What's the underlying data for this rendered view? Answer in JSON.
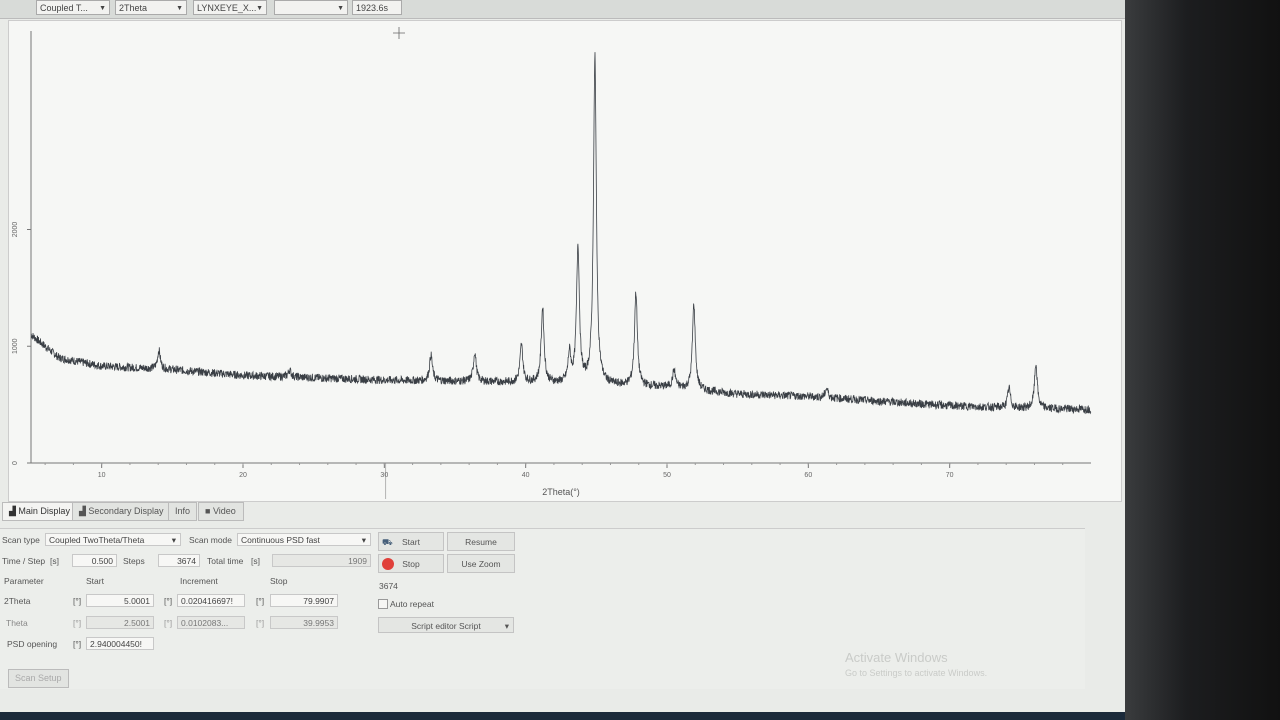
{
  "toolbar": {
    "scan_type_short": "Coupled T...",
    "axis": "2Theta",
    "detector": "LYNXEYE_X...",
    "blank": "",
    "time": "1923.6s"
  },
  "tabs": [
    {
      "label": "Main Display",
      "active": true
    },
    {
      "label": "Secondary Display"
    },
    {
      "label": "Info"
    },
    {
      "label": "Video"
    }
  ],
  "scan": {
    "scan_type_label": "Scan type",
    "scan_type": "Coupled TwoTheta/Theta",
    "scan_mode_label": "Scan mode",
    "scan_mode": "Continuous PSD fast",
    "time_step_label": "Time / Step",
    "time_step_unit": "[s]",
    "time_step": "0.500",
    "steps_label": "Steps",
    "steps": "3674",
    "total_time_label": "Total time",
    "total_time_unit": "[s]",
    "total_time": "1909",
    "headers": {
      "parameter": "Parameter",
      "start": "Start",
      "increment": "Increment",
      "stop": "Stop"
    },
    "unit": "[°]",
    "rows": [
      {
        "name": "2Theta",
        "start": "5.0001",
        "increment": "0.020416697!",
        "stop": "79.9907"
      },
      {
        "name": "Theta",
        "start": "2.5001",
        "increment": "0.0102083...",
        "stop": "39.9953"
      }
    ],
    "psd_label": "PSD opening",
    "psd": "2.940004450!",
    "counter": "3674",
    "auto_repeat": "Auto repeat",
    "script": "Script editor Script",
    "setup_tab": "Scan Setup"
  },
  "buttons": {
    "start": "Start",
    "resume": "Resume",
    "stop": "Stop",
    "use_zoom": "Use Zoom"
  },
  "watermark": {
    "title": "Activate Windows",
    "sub": "Go to Settings to activate Windows."
  },
  "chart_data": {
    "type": "line",
    "xlabel": "2Theta(°)",
    "ylabel": "",
    "xlim": [
      5,
      80
    ],
    "ylim": [
      0,
      3700
    ],
    "x_ticks": [
      10,
      20,
      30,
      40,
      50,
      60,
      70
    ],
    "y_ticks": [
      0,
      1000,
      2000
    ],
    "baseline": [
      [
        5,
        1100
      ],
      [
        7,
        900
      ],
      [
        10,
        830
      ],
      [
        15,
        800
      ],
      [
        20,
        750
      ],
      [
        30,
        710
      ],
      [
        40,
        690
      ],
      [
        50,
        650
      ],
      [
        55,
        590
      ],
      [
        60,
        570
      ],
      [
        70,
        490
      ],
      [
        75,
        470
      ],
      [
        80,
        460
      ]
    ],
    "peaks": [
      [
        14.05,
        160
      ],
      [
        23.3,
        60
      ],
      [
        33.3,
        220
      ],
      [
        36.4,
        250
      ],
      [
        39.7,
        320
      ],
      [
        41.2,
        640
      ],
      [
        43.1,
        250
      ],
      [
        43.7,
        1180
      ],
      [
        44.9,
        2820
      ],
      [
        47.8,
        800
      ],
      [
        50.5,
        150
      ],
      [
        51.9,
        740
      ],
      [
        61.3,
        80
      ],
      [
        74.2,
        170
      ],
      [
        76.1,
        380
      ]
    ],
    "line_color": "#3a3f45"
  }
}
